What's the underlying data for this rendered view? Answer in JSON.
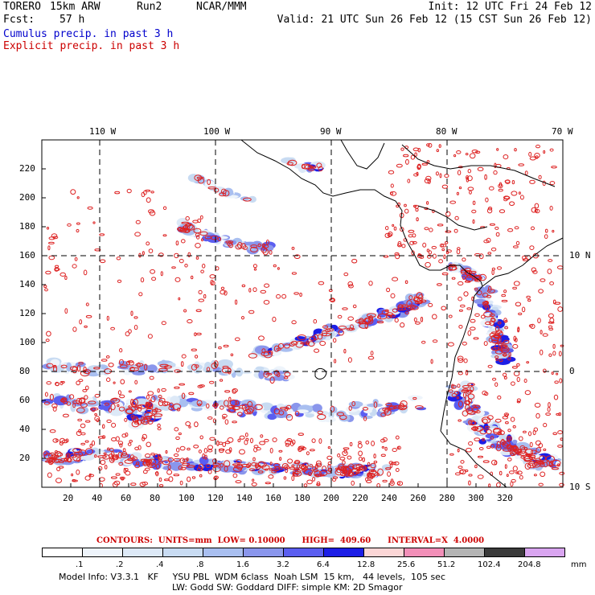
{
  "header": {
    "model": "TORERO",
    "resolution": "15km ARW",
    "run": "Run2",
    "org": "NCAR/MMM",
    "init": "Init: 12 UTC Fri 24 Feb 12",
    "fcst_label": "Fcst:",
    "fcst_value": "57 h",
    "valid": "Valid: 21 UTC Sun 26 Feb 12 (15 CST Sun 26 Feb 12)"
  },
  "fields": {
    "cumulus": "Cumulus precip. in past 3 h",
    "explicit": "Explicit precip. in past 3 h"
  },
  "colors": {
    "cumulus": "#0000cc",
    "explicit": "#cc0000",
    "contour": "#dd2222",
    "coast": "#000000"
  },
  "map": {
    "top_lon_labels": [
      "110 W",
      "100 W",
      "90 W",
      "80 W",
      "70 W"
    ],
    "right_lat_labels": [
      "10 N",
      "0",
      "10 S"
    ],
    "y_ticks": [
      "220",
      "200",
      "180",
      "160",
      "140",
      "120",
      "100",
      "80",
      "60",
      "40",
      "20"
    ],
    "x_ticks": [
      "20",
      "40",
      "60",
      "80",
      "100",
      "120",
      "140",
      "160",
      "180",
      "200",
      "220",
      "240",
      "260",
      "280",
      "300",
      "320"
    ]
  },
  "contour_info": {
    "text": "CONTOURS:  UNITS=mm  LOW= 0.10000      HIGH=  409.60      INTERVAL=X  4.0000"
  },
  "legend": {
    "unit": "mm",
    "labels": [
      ".1",
      ".2",
      ".4",
      ".8",
      "1.6",
      "3.2",
      "6.4",
      "12.8",
      "25.6",
      "51.2",
      "102.4",
      "204.8"
    ],
    "bins": [
      {
        "color": "#ffffff"
      },
      {
        "color": "#eef4fb"
      },
      {
        "color": "#dde9f7"
      },
      {
        "color": "#c8dbf2"
      },
      {
        "color": "#a9bff0"
      },
      {
        "color": "#8a96ec"
      },
      {
        "color": "#5b5ef0"
      },
      {
        "color": "#1d1ee6"
      },
      {
        "color": "#fbd6d6"
      },
      {
        "color": "#f28fb8"
      },
      {
        "color": "#b4b4b4"
      },
      {
        "color": "#3a3a3a"
      },
      {
        "color": "#d9a5f0"
      }
    ]
  },
  "footer": {
    "line1": "Model Info: V3.3.1   KF     YSU PBL  WDM 6class  Noah LSM  15 km,   44 levels,  105 sec",
    "line2": "LW: Godd SW: Goddard DIFF: simple KM: 2D Smagor"
  }
}
